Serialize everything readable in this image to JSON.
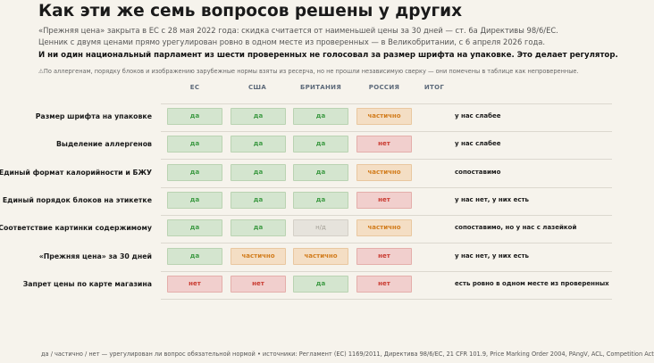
{
  "header": {
    "title": "Как эти же семь вопросов решены у других",
    "subtitle_line1": "«Прежняя цена» закрыта в ЕС с 28 мая 2022 года: скидка считается от наименьшей цены за 30 дней — ст. 6а Директивы 98/6/ЕС.",
    "subtitle_line2": "Ценник с двумя ценами прямо урегулирован ровно в одном месте из проверенных — в Великобритании, с 6 апреля 2026 года.",
    "bold_line": "И ни один национальный парламент из шести проверенных не голосовал за размер шрифта на упаковке. Это делает регулятор.",
    "note": "⚠По аллергенам, порядку блоков и изображению зарубежные нормы взяты из ресерча, но не прошли независимую сверку — они помечены в таблице как непроверенные."
  },
  "columns": [
    "ЕС",
    "США",
    "БРИТАНИЯ",
    "РОССИЯ",
    "ИТОГ"
  ],
  "status_colors": {
    "yes": "#3f9b45",
    "partial": "#d27c1c",
    "no": "#c93a30",
    "na": "#a19d94"
  },
  "rows": [
    {
      "label": "Размер шрифта на упаковке",
      "cells": [
        {
          "text": "да",
          "status": "yes"
        },
        {
          "text": "да",
          "status": "yes"
        },
        {
          "text": "да",
          "status": "yes"
        },
        {
          "text": "частично",
          "status": "part"
        }
      ],
      "verdict": "у нас слабее"
    },
    {
      "label": "Выделение аллергенов",
      "cells": [
        {
          "text": "да",
          "status": "yes"
        },
        {
          "text": "да",
          "status": "yes"
        },
        {
          "text": "да",
          "status": "yes"
        },
        {
          "text": "нет",
          "status": "no"
        }
      ],
      "verdict": "у нас слабее"
    },
    {
      "label": "Единый формат калорийности и БЖУ",
      "cells": [
        {
          "text": "да",
          "status": "yes"
        },
        {
          "text": "да",
          "status": "yes"
        },
        {
          "text": "да",
          "status": "yes"
        },
        {
          "text": "частично",
          "status": "part"
        }
      ],
      "verdict": "сопоставимо"
    },
    {
      "label": "Единый порядок блоков на этикетке",
      "cells": [
        {
          "text": "да",
          "status": "yes"
        },
        {
          "text": "да",
          "status": "yes"
        },
        {
          "text": "да",
          "status": "yes"
        },
        {
          "text": "нет",
          "status": "no"
        }
      ],
      "verdict": "у нас нет, у них есть"
    },
    {
      "label": "Соответствие картинки содержимому",
      "cells": [
        {
          "text": "да",
          "status": "yes"
        },
        {
          "text": "да",
          "status": "yes"
        },
        {
          "text": "н/д",
          "status": "na"
        },
        {
          "text": "частично",
          "status": "part"
        }
      ],
      "verdict": "сопоставимо, но у нас с лазейкой"
    },
    {
      "label": "«Прежняя цена» за 30 дней",
      "cells": [
        {
          "text": "да",
          "status": "yes"
        },
        {
          "text": "частично",
          "status": "part"
        },
        {
          "text": "частично",
          "status": "part"
        },
        {
          "text": "нет",
          "status": "no"
        }
      ],
      "verdict": "у нас нет, у них есть"
    },
    {
      "label": "Запрет цены по карте магазина",
      "cells": [
        {
          "text": "нет",
          "status": "no"
        },
        {
          "text": "нет",
          "status": "no"
        },
        {
          "text": "да",
          "status": "yes"
        },
        {
          "text": "нет",
          "status": "no"
        }
      ],
      "verdict": "есть ровно в одном месте из проверенных"
    }
  ],
  "footer": "да / частично / нет — урегулирован ли вопрос обязательной нормой • источники: Регламент (ЕС) 1169/2011, Директива 98/6/ЕС, 21 CFR 101.9, Price Marking Order 2004, PAngV, ACL, Competition Act"
}
